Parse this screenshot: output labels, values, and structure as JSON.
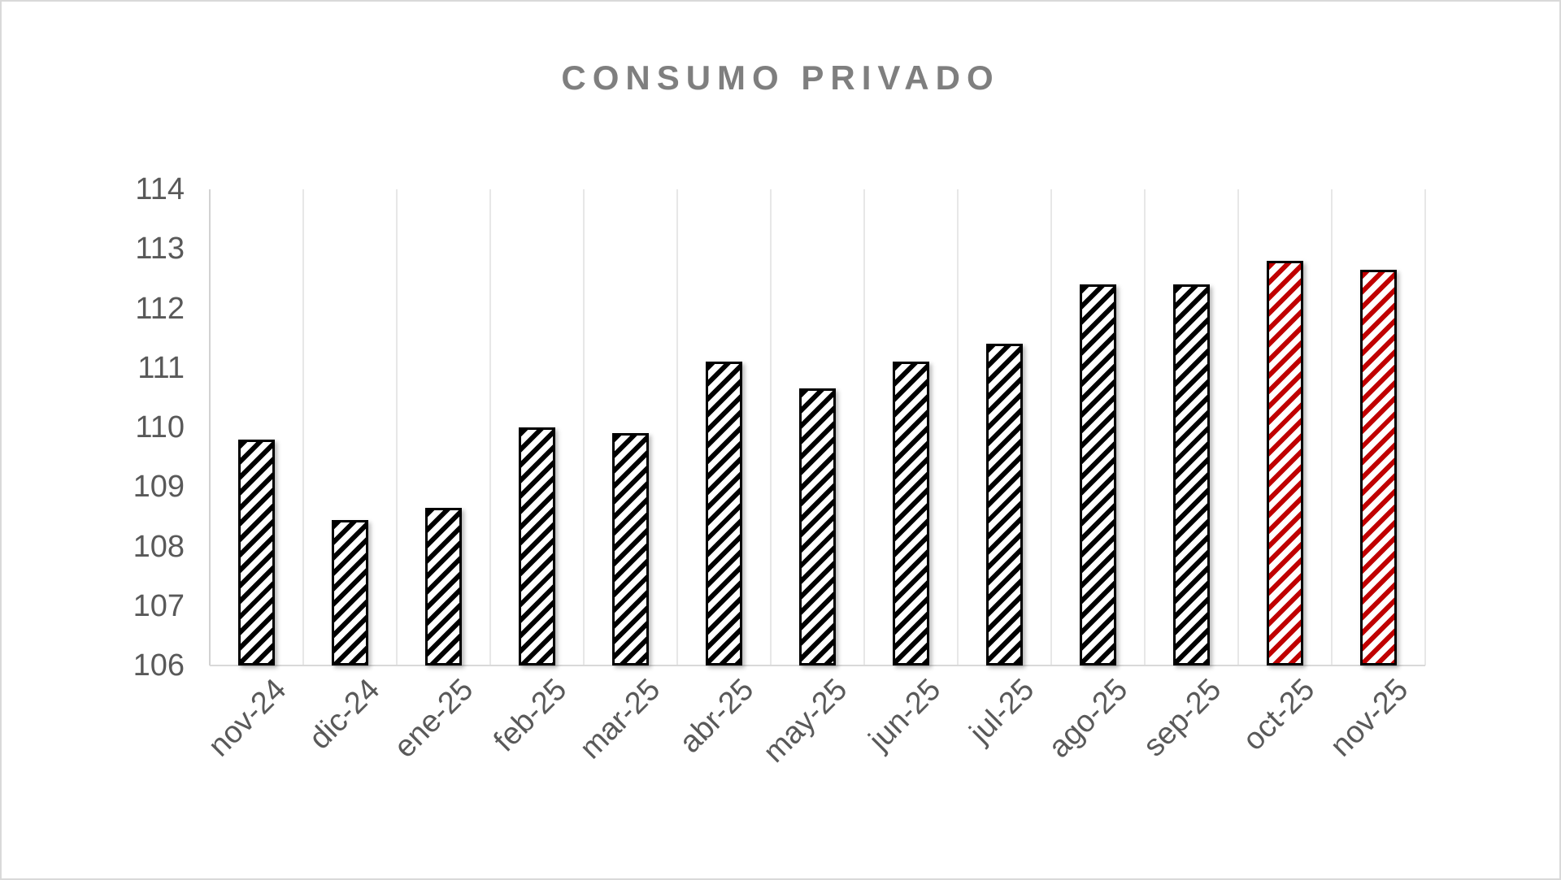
{
  "chart_data": {
    "type": "bar",
    "title": "CONSUMO PRIVADO",
    "categories": [
      "nov-24",
      "dic-24",
      "ene-25",
      "feb-25",
      "mar-25",
      "abr-25",
      "may-25",
      "jun-25",
      "jul-25",
      "ago-25",
      "sep-25",
      "oct-25",
      "nov-25"
    ],
    "values": [
      109.8,
      108.45,
      108.65,
      110.0,
      109.9,
      111.1,
      110.65,
      111.1,
      111.4,
      112.4,
      112.4,
      112.8,
      112.65
    ],
    "highlight_indices": [
      11,
      12
    ],
    "yticks": [
      114,
      113,
      112,
      111,
      110,
      109,
      108,
      107,
      106
    ],
    "ylim": [
      106,
      114
    ],
    "xlabel": "",
    "ylabel": "",
    "legend": "none",
    "grid": "vertical-only",
    "hatch_pattern": "diagonal-stripes-ascending",
    "colors": {
      "default_bar": "#000000",
      "highlight_bar": "#C00000",
      "bar_border": "#000000",
      "title": "#7F7F7F",
      "tick_label": "#595959",
      "gridline": "#E7E7E7",
      "axis_line": "#D9D9D9",
      "background": "#FFFFFF",
      "canvas_border": "#D9D9D9"
    }
  }
}
